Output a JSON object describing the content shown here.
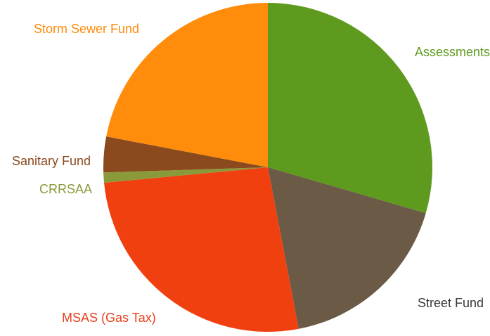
{
  "chart_data": {
    "type": "pie",
    "title": "",
    "start_angle_deg": 0,
    "direction": "clockwise",
    "legend": "none",
    "slices": [
      {
        "label": "Assessments",
        "value": 29.5,
        "color": "#5e9a1e",
        "label_color": "#5e9a1e"
      },
      {
        "label": "Street Fund",
        "value": 17.5,
        "color": "#6b5a45",
        "label_color": "#3a3a3a"
      },
      {
        "label": "MSAS (Gas Tax)",
        "value": 26.5,
        "color": "#f04010",
        "label_color": "#e8401c"
      },
      {
        "label": "CRRSAA",
        "value": 1.0,
        "color": "#8a9a3a",
        "label_color": "#8a9a3a"
      },
      {
        "label": "Sanitary Fund",
        "value": 3.5,
        "color": "#8a4a1e",
        "label_color": "#8a4a1e"
      },
      {
        "label": "Storm Sewer Fund",
        "value": 22.0,
        "color": "#ff8c0a",
        "label_color": "#ff8c0a"
      }
    ]
  }
}
